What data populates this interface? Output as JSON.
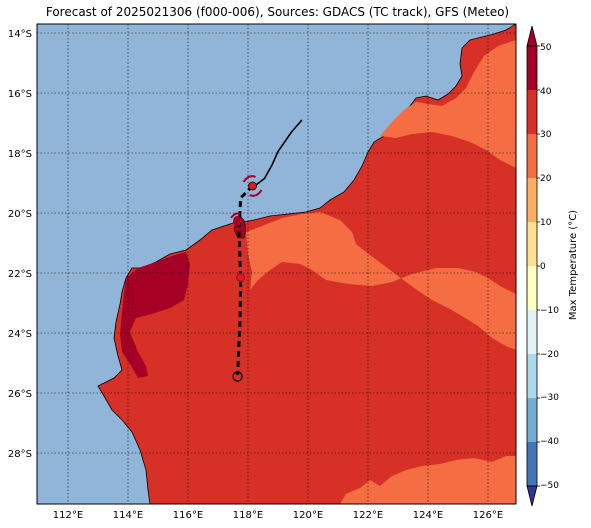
{
  "title": "Forecast of 2025021306 (f000-006), Sources: GDACS (TC track), GFS (Meteo)",
  "map": {
    "lon_range": [
      111,
      127
    ],
    "lat_range": [
      -29.7,
      -13.7
    ],
    "lon_ticks": [
      "112°E",
      "114°E",
      "116°E",
      "118°E",
      "120°E",
      "122°E",
      "124°E",
      "126°E"
    ],
    "lat_ticks": [
      "14°S",
      "16°S",
      "18°S",
      "20°S",
      "22°S",
      "24°S",
      "26°S",
      "28°S"
    ],
    "grid": true,
    "ocean_color": "#91b4d9"
  },
  "colorbar": {
    "label": "Max Temperature (°C)",
    "ticks": [
      "50",
      "40",
      "30",
      "20",
      "10",
      "0",
      "−10",
      "−20",
      "−30",
      "−40",
      "−50"
    ],
    "bands": [
      {
        "from": 40,
        "to": 50,
        "color": "#a50026"
      },
      {
        "from": 30,
        "to": 40,
        "color": "#d73027"
      },
      {
        "from": 20,
        "to": 30,
        "color": "#f46d43"
      },
      {
        "from": 10,
        "to": 20,
        "color": "#fdae61"
      },
      {
        "from": 0,
        "to": 10,
        "color": "#fee090"
      },
      {
        "from": -10,
        "to": 0,
        "color": "#ffffbf"
      },
      {
        "from": -20,
        "to": -10,
        "color": "#e0f3f8"
      },
      {
        "from": -30,
        "to": -20,
        "color": "#abd9e9"
      },
      {
        "from": -40,
        "to": -30,
        "color": "#74add1"
      },
      {
        "from": -50,
        "to": -40,
        "color": "#4575b4"
      }
    ],
    "extend_min_color": "#313695",
    "extend_max_color": "#a50026"
  },
  "track": {
    "past_track": [
      [
        119.85,
        -16.9
      ],
      [
        119.5,
        -17.3
      ],
      [
        119.05,
        -17.95
      ],
      [
        118.85,
        -18.4
      ],
      [
        118.6,
        -18.85
      ],
      [
        118.2,
        -19.15
      ]
    ],
    "forecast_track": [
      [
        118.2,
        -19.1
      ],
      [
        117.8,
        -19.5
      ],
      [
        117.75,
        -20.6
      ],
      [
        117.78,
        -21.6
      ],
      [
        117.8,
        -22.3
      ],
      [
        117.78,
        -23.6
      ],
      [
        117.7,
        -25.4
      ]
    ],
    "current_position": [
      118.2,
      -19.1
    ],
    "forecast_point": [
      117.8,
      -22.15
    ],
    "end_marker": [
      117.7,
      -25.45
    ]
  }
}
